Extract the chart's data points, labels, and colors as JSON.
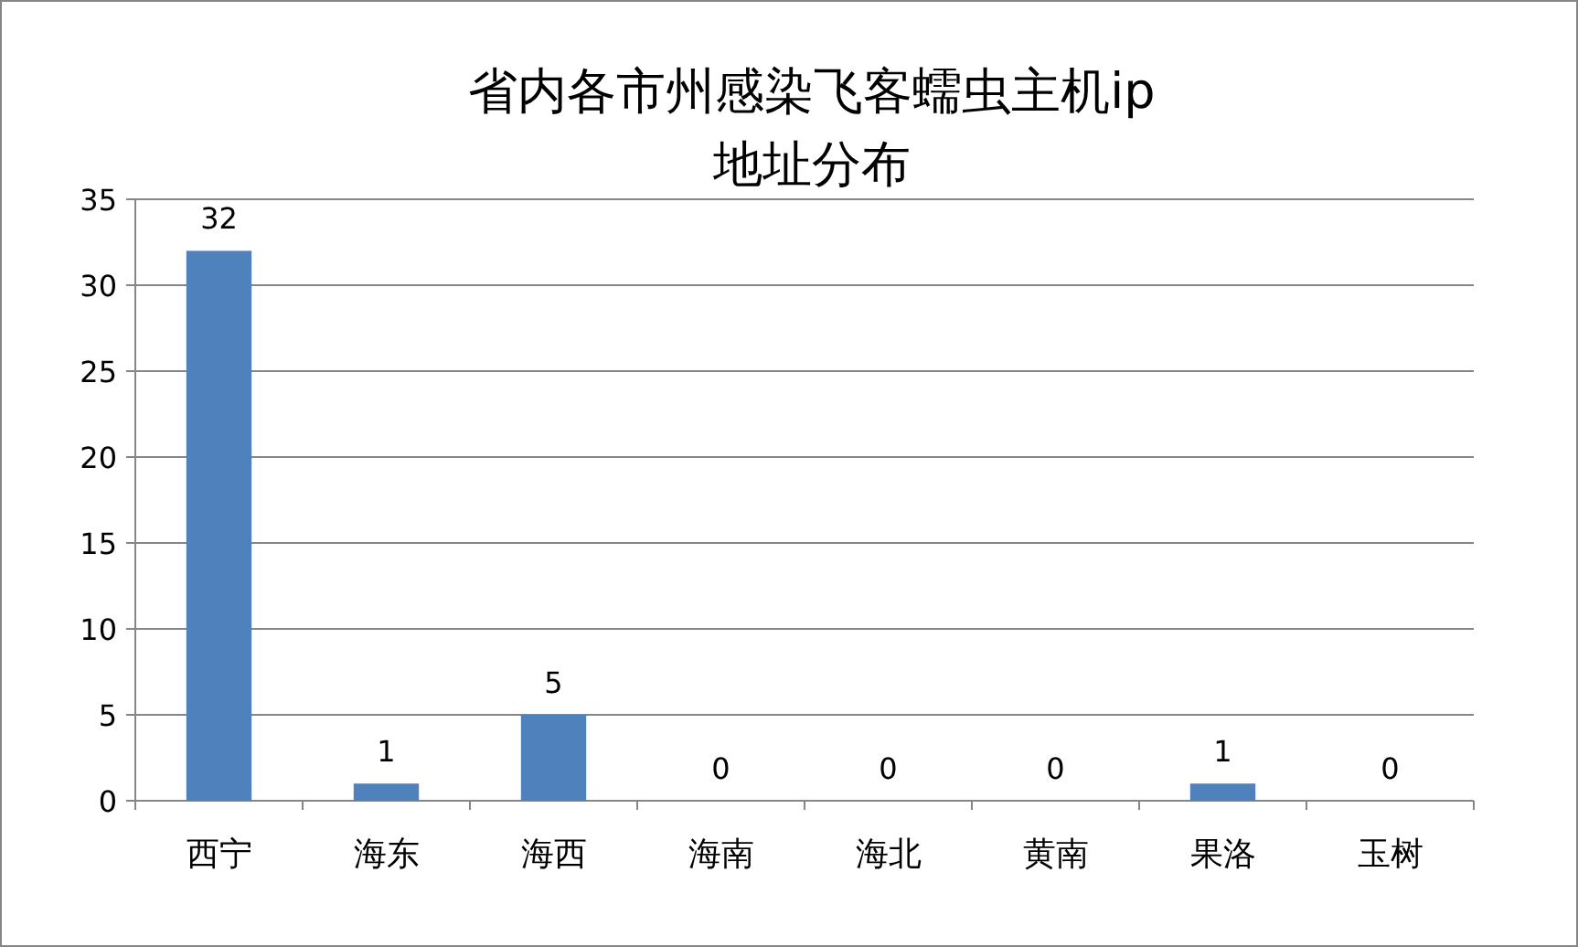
{
  "chart_data": {
    "type": "bar",
    "title": "省内各市州感染飞客蠕虫主机ip地址分布",
    "categories": [
      "西宁",
      "海东",
      "海西",
      "海南",
      "海北",
      "黄南",
      "果洛",
      "玉树"
    ],
    "values": [
      32,
      1,
      5,
      0,
      0,
      0,
      1,
      0
    ],
    "color": "#4f81bd",
    "ylim": [
      0,
      35
    ],
    "yticks": [
      0,
      5,
      10,
      15,
      20,
      25,
      30,
      35
    ],
    "grid": "y",
    "data_labels": true
  }
}
